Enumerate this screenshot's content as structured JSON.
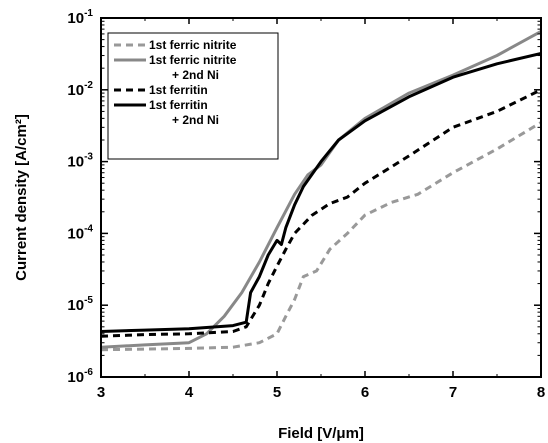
{
  "chart_data": {
    "type": "line",
    "xlabel": "Field [V/μm]",
    "ylabel": "Current density [A/cm²]",
    "xlim": [
      3,
      8
    ],
    "ylim_log10": [
      -6,
      -1
    ],
    "y_scale": "log",
    "x_ticks": [
      "3",
      "4",
      "5",
      "6",
      "7",
      "8"
    ],
    "y_ticks": [
      {
        "base": "10",
        "exp": "-6"
      },
      {
        "base": "10",
        "exp": "-5"
      },
      {
        "base": "10",
        "exp": "-4"
      },
      {
        "base": "10",
        "exp": "-3"
      },
      {
        "base": "10",
        "exp": "-2"
      },
      {
        "base": "10",
        "exp": "-1"
      }
    ],
    "legend_placement": "top-left",
    "series": [
      {
        "name": "1st ferric nitrite",
        "legend_lines": [
          "1st ferric nitrite"
        ],
        "color": "#999999",
        "dash": "dashed",
        "x": [
          3.0,
          3.5,
          4.0,
          4.5,
          4.8,
          5.0,
          5.1,
          5.2,
          5.3,
          5.45,
          5.6,
          5.8,
          6.0,
          6.3,
          6.6,
          7.0,
          7.5,
          8.0
        ],
        "y": [
          2.4e-06,
          2.45e-06,
          2.5e-06,
          2.6e-06,
          3e-06,
          4e-06,
          7e-06,
          1.2e-05,
          2.5e-05,
          3e-05,
          6e-05,
          0.0001,
          0.00018,
          0.00027,
          0.00035,
          0.0007,
          0.0015,
          0.0035
        ]
      },
      {
        "name": "1st ferric nitrite + 2nd Ni",
        "legend_lines": [
          "1st ferric nitrite",
          "+ 2nd Ni"
        ],
        "color": "#888888",
        "dash": "solid",
        "x": [
          3.0,
          3.5,
          4.0,
          4.2,
          4.4,
          4.6,
          4.8,
          5.0,
          5.2,
          5.35,
          5.5,
          5.7,
          6.0,
          6.5,
          7.0,
          7.5,
          8.0
        ],
        "y": [
          2.6e-06,
          2.8e-06,
          3e-06,
          4e-06,
          7e-06,
          1.5e-05,
          4e-05,
          0.00012,
          0.00035,
          0.00065,
          0.0009,
          0.002,
          0.004,
          0.009,
          0.016,
          0.03,
          0.065
        ]
      },
      {
        "name": "1st ferritin",
        "legend_lines": [
          "1st ferritin"
        ],
        "color": "#000000",
        "dash": "dashed",
        "x": [
          3.0,
          3.5,
          4.0,
          4.5,
          4.65,
          4.8,
          4.9,
          5.0,
          5.1,
          5.2,
          5.4,
          5.6,
          5.8,
          6.0,
          6.5,
          7.0,
          7.5,
          8.0
        ],
        "y": [
          3.7e-06,
          3.9e-06,
          4e-06,
          4.3e-06,
          5e-06,
          1e-05,
          2e-05,
          3.5e-05,
          6e-05,
          0.0001,
          0.00018,
          0.00026,
          0.00032,
          0.0005,
          0.0012,
          0.003,
          0.005,
          0.01
        ]
      },
      {
        "name": "1st ferritin + 2nd Ni",
        "legend_lines": [
          "1st ferritin",
          "+ 2nd Ni"
        ],
        "color": "#000000",
        "dash": "solid",
        "x": [
          3.0,
          3.5,
          4.0,
          4.5,
          4.65,
          4.7,
          4.8,
          4.9,
          5.0,
          5.05,
          5.1,
          5.2,
          5.3,
          5.5,
          5.7,
          6.0,
          6.5,
          7.0,
          7.5,
          8.0
        ],
        "y": [
          4.3e-06,
          4.5e-06,
          4.7e-06,
          5.2e-06,
          5.8e-06,
          1.5e-05,
          2.5e-05,
          5e-05,
          8e-05,
          7e-05,
          0.00012,
          0.00025,
          0.00045,
          0.001,
          0.002,
          0.0037,
          0.008,
          0.015,
          0.023,
          0.032
        ]
      }
    ]
  }
}
